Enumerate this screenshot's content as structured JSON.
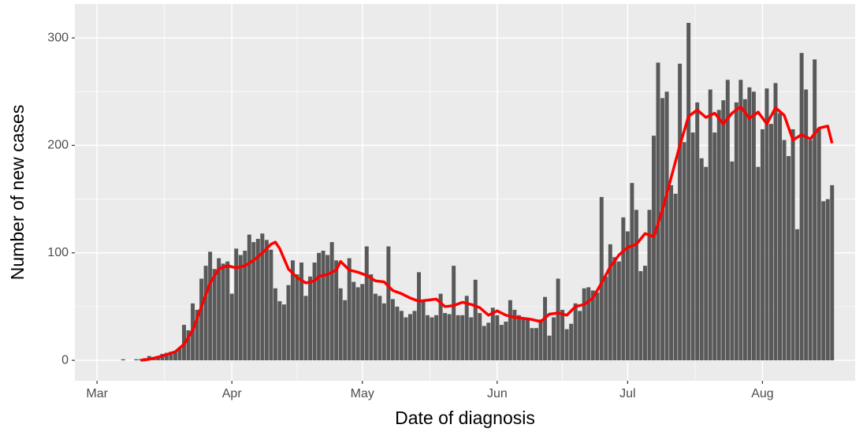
{
  "chart_data": {
    "type": "bar_line",
    "xlabel": "Date of diagnosis",
    "ylabel": "Number of new cases",
    "xlim": [
      -5.1,
      174.3
    ],
    "xticks": [
      {
        "value": 0,
        "label": "Mar"
      },
      {
        "value": 31,
        "label": "Apr"
      },
      {
        "value": 61,
        "label": "May"
      },
      {
        "value": 92,
        "label": "Jun"
      },
      {
        "value": 122,
        "label": "Jul"
      },
      {
        "value": 153,
        "label": "Aug"
      }
    ],
    "ylim": [
      -19,
      331.6
    ],
    "yticks": [
      0,
      100,
      200,
      300
    ],
    "grid": true,
    "bars": {
      "color": "#595959",
      "x": [
        6,
        9,
        10,
        11,
        12,
        13,
        14,
        15,
        16,
        17,
        18,
        19,
        20,
        21,
        22,
        23,
        24,
        25,
        26,
        27,
        28,
        29,
        30,
        31,
        32,
        33,
        34,
        35,
        36,
        37,
        38,
        39,
        40,
        41,
        42,
        43,
        44,
        45,
        46,
        47,
        48,
        49,
        50,
        51,
        52,
        53,
        54,
        55,
        56,
        57,
        58,
        59,
        60,
        61,
        62,
        63,
        64,
        65,
        66,
        67,
        68,
        69,
        70,
        71,
        72,
        73,
        74,
        75,
        76,
        77,
        78,
        79,
        80,
        81,
        82,
        83,
        84,
        85,
        86,
        87,
        88,
        89,
        90,
        91,
        92,
        93,
        94,
        95,
        96,
        97,
        98,
        99,
        100,
        101,
        102,
        103,
        104,
        105,
        106,
        107,
        108,
        109,
        110,
        111,
        112,
        113,
        114,
        115,
        116,
        117,
        118,
        119,
        120,
        121,
        122,
        123,
        124,
        125,
        126,
        127,
        128,
        129,
        130,
        131,
        132,
        133,
        134,
        135,
        136,
        137,
        138,
        139,
        140,
        141,
        142,
        143,
        144,
        145,
        146,
        147,
        148,
        149,
        150,
        151,
        152,
        153,
        154,
        155,
        156,
        157,
        158,
        159,
        160,
        161,
        162,
        163,
        164,
        165,
        166,
        167,
        168,
        169
      ],
      "values": [
        1,
        1,
        1,
        2,
        4,
        3,
        4,
        6,
        7,
        8,
        8,
        12,
        33,
        28,
        53,
        47,
        76,
        88,
        101,
        85,
        95,
        90,
        92,
        62,
        104,
        98,
        102,
        117,
        110,
        113,
        118,
        112,
        103,
        67,
        55,
        52,
        70,
        93,
        80,
        91,
        60,
        78,
        91,
        100,
        102,
        98,
        110,
        93,
        67,
        56,
        95,
        73,
        68,
        71,
        106,
        80,
        62,
        60,
        53,
        106,
        57,
        50,
        46,
        40,
        43,
        46,
        82,
        56,
        42,
        40,
        42,
        62,
        44,
        43,
        88,
        42,
        42,
        60,
        40,
        75,
        44,
        32,
        35,
        49,
        42,
        33,
        36,
        56,
        47,
        42,
        40,
        38,
        30,
        30,
        38,
        59,
        23,
        40,
        76,
        47,
        29,
        34,
        53,
        46,
        67,
        68,
        65,
        63,
        152,
        78,
        108,
        96,
        92,
        133,
        120,
        165,
        140,
        83,
        88,
        140,
        209,
        277,
        244,
        250,
        163,
        155,
        276,
        203,
        314,
        212,
        240,
        188,
        180,
        252,
        212,
        233,
        242,
        261,
        185,
        240,
        261,
        243,
        254,
        250,
        180,
        215,
        253,
        220,
        258,
        230,
        205,
        190,
        215,
        122,
        286,
        252,
        205,
        280,
        215,
        148,
        150,
        163
      ]
    },
    "line": {
      "color": "#ff0000",
      "x": [
        10,
        12,
        15,
        18,
        20,
        22,
        24,
        26,
        28,
        30,
        32,
        34,
        36,
        38,
        40,
        41,
        42,
        44,
        46,
        48,
        50,
        51,
        53,
        55,
        56,
        58,
        60,
        62,
        64,
        66,
        68,
        70,
        72,
        74,
        76,
        78,
        80,
        82,
        84,
        86,
        88,
        90,
        92,
        94,
        96,
        98,
        100,
        102,
        104,
        106,
        108,
        110,
        112,
        114,
        116,
        118,
        120,
        122,
        124,
        126,
        128,
        130,
        132,
        134,
        136,
        138,
        140,
        142,
        144,
        146,
        148,
        150,
        152,
        154,
        156,
        158,
        160,
        162,
        164,
        166,
        168,
        169
      ],
      "values": [
        0,
        1,
        4,
        8,
        15,
        28,
        50,
        72,
        85,
        88,
        86,
        88,
        93,
        100,
        108,
        110,
        104,
        85,
        77,
        72,
        74,
        78,
        80,
        84,
        92,
        84,
        82,
        79,
        74,
        73,
        65,
        62,
        58,
        55,
        56,
        57,
        50,
        51,
        54,
        52,
        49,
        42,
        46,
        42,
        40,
        39,
        38,
        36,
        43,
        44,
        42,
        50,
        52,
        58,
        72,
        87,
        98,
        105,
        108,
        118,
        115,
        140,
        170,
        200,
        227,
        233,
        226,
        230,
        220,
        230,
        236,
        225,
        231,
        220,
        235,
        228,
        205,
        210,
        206,
        216,
        218,
        202
      ]
    }
  }
}
